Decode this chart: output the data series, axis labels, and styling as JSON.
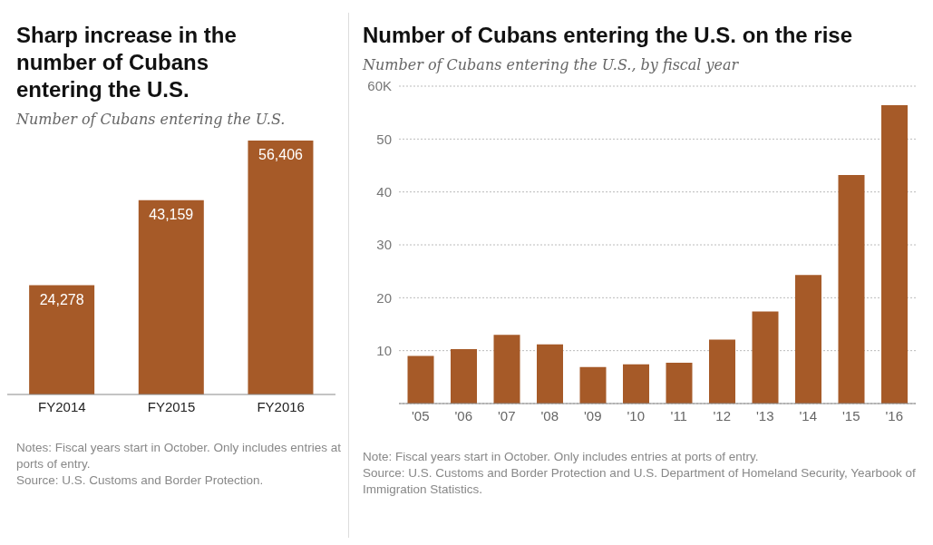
{
  "chart_data": [
    {
      "type": "bar",
      "title": "Sharp increase in the number of Cubans entering the U.S.",
      "subtitle": "Number of Cubans entering the U.S.",
      "categories": [
        "FY2014",
        "FY2015",
        "FY2016"
      ],
      "values": [
        24278,
        43159,
        56406
      ],
      "color": "#a65a28",
      "value_labels": [
        "24,278",
        "43,159",
        "56,406"
      ],
      "tick_labels": "x",
      "annotations": [
        "Notes: Fiscal years start in October. Only includes entries at ports of entry.",
        "Source: U.S. Customs and Border Protection."
      ]
    },
    {
      "type": "bar",
      "title": "Number of Cubans entering the U.S. on the rise",
      "subtitle": "Number of Cubans entering the U.S., by fiscal year",
      "categories": [
        "'05",
        "'06",
        "'07",
        "'08",
        "'09",
        "'10",
        "'11",
        "'12",
        "'13",
        "'14",
        "'15",
        "'16"
      ],
      "values": [
        9.0,
        10.3,
        13.0,
        11.2,
        6.9,
        7.4,
        7.7,
        12.1,
        17.4,
        24.3,
        43.2,
        56.4
      ],
      "color": "#a65a28",
      "ylim": [
        0,
        60
      ],
      "yticks": [
        10,
        20,
        30,
        40,
        50,
        {
          "value": 60,
          "label": "60K"
        }
      ],
      "grid": "y",
      "annotations": [
        "Note: Fiscal years start in October. Only includes entries at ports of entry.",
        "Source: U.S. Customs and Border Protection and U.S. Department of Homeland Security, Yearbook of Immigration Statistics."
      ]
    }
  ]
}
